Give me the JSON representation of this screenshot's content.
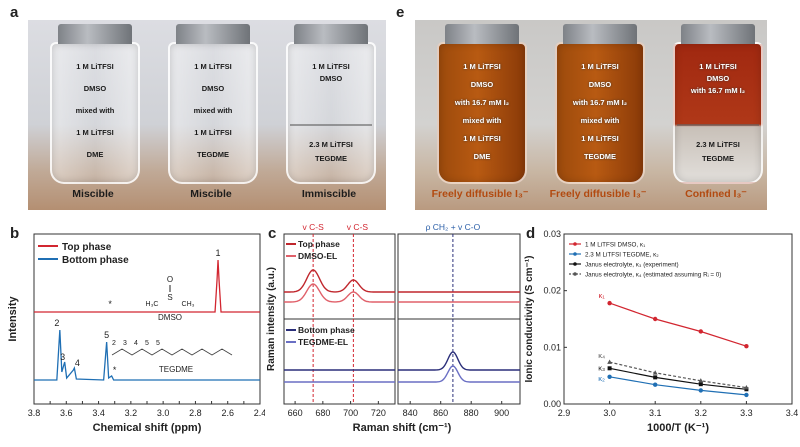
{
  "panel_a": {
    "letter": "a",
    "vials": [
      {
        "lines": [
          "1 M LiTFSI",
          "DMSO",
          "mixed with",
          "1 M LiTFSI",
          "DME"
        ],
        "caption": "Miscible"
      },
      {
        "lines": [
          "1 M LiTFSI",
          "DMSO",
          "mixed with",
          "1 M LiTFSI",
          "TEGDME"
        ],
        "caption": "Miscible"
      },
      {
        "lines": [
          "1 M LiTFSI",
          "DMSO",
          "2.3 M LiTFSI",
          "TEGDME"
        ],
        "caption": "Immiscible"
      }
    ]
  },
  "panel_e": {
    "letter": "e",
    "vials": [
      {
        "lines": [
          "1 M LiTFSI",
          "DMSO",
          "with 16.7 mM I₂",
          "mixed with",
          "1 M LiTFSI",
          "DME"
        ],
        "caption": "Freely diffusible I₃⁻",
        "color": "#b85a12"
      },
      {
        "lines": [
          "1 M LiTFSI",
          "DMSO",
          "with 16.7 mM I₂",
          "mixed with",
          "1 M LiTFSI",
          "TEGDME"
        ],
        "caption": "Freely diffusible I₃⁻",
        "color": "#b85a12"
      },
      {
        "lines": [
          "1 M LiTFSI",
          "DMSO",
          "with 16.7 mM I₂",
          "2.3 M LiTFSI",
          "TEGDME"
        ],
        "caption": "Confined I₃⁻",
        "color": "#a02810"
      }
    ]
  },
  "chart_data": [
    {
      "panel": "b",
      "type": "line",
      "xlabel": "Chemical shift (ppm)",
      "ylabel": "Intensity",
      "xlim": [
        3.8,
        2.4
      ],
      "x_ticks": [
        "3.8",
        "3.7",
        "3.6",
        "3.5",
        "3.4",
        "3.3",
        "3.2",
        "3.1",
        "3.0",
        "2.9",
        "2.8",
        "2.7",
        "2.6",
        "2.5",
        "2.4"
      ],
      "legend": [
        "Top phase",
        "Bottom phase"
      ],
      "series": [
        {
          "name": "Top phase",
          "color": "#d22630",
          "peaks": [
            {
              "x": 2.66,
              "label": "1"
            },
            {
              "x": 3.31,
              "label": "*"
            }
          ]
        },
        {
          "name": "Bottom phase",
          "color": "#1f6fb4",
          "peaks": [
            {
              "x": 3.64,
              "label": "2"
            },
            {
              "x": 3.61,
              "label": "3"
            },
            {
              "x": 3.55,
              "label": "4"
            },
            {
              "x": 3.35,
              "label": "5"
            },
            {
              "x": 3.31,
              "label": "*"
            }
          ]
        }
      ],
      "molecules": [
        "DMSO",
        "TEGDME"
      ],
      "structure_labels": {
        "dmso_s": "S",
        "dmso_o": "O",
        "dmso_c1": "H₃C",
        "dmso_c2": "CH₃",
        "tegdme_nums": [
          "2",
          "3",
          "4",
          "5",
          "5"
        ]
      }
    },
    {
      "panel": "c",
      "type": "line",
      "xlabel": "Raman shift (cm⁻¹)",
      "ylabel": "Raman intensity (a.u.)",
      "x_ticks_left": [
        "660",
        "680",
        "700",
        "720"
      ],
      "x_ticks_right": [
        "840",
        "860",
        "880",
        "900"
      ],
      "annotations": [
        "v C-S",
        "v C-S",
        "ρ CH₂ + v C-O"
      ],
      "vlines": [
        673,
        702,
        868
      ],
      "legend_top": [
        "Top phase",
        "DMSO-EL"
      ],
      "legend_bottom": [
        "Bottom phase",
        "TEGDME-EL"
      ],
      "series": [
        {
          "name": "Top phase",
          "color": "#c0272d"
        },
        {
          "name": "DMSO-EL",
          "color": "#e0606a"
        },
        {
          "name": "Bottom phase",
          "color": "#2b2f7a"
        },
        {
          "name": "TEGDME-EL",
          "color": "#6a6fc4"
        }
      ]
    },
    {
      "panel": "d",
      "type": "line",
      "xlabel": "1000/T (K⁻¹)",
      "ylabel": "Ionic conductivity (S cm⁻¹)",
      "xlim": [
        2.9,
        3.4
      ],
      "ylim": [
        0,
        0.03
      ],
      "x_ticks": [
        "2.9",
        "3.0",
        "3.1",
        "3.2",
        "3.3",
        "3.4"
      ],
      "y_ticks": [
        "0.00",
        "0.01",
        "0.02",
        "0.03"
      ],
      "x": [
        3.0,
        3.1,
        3.2,
        3.3
      ],
      "series": [
        {
          "name": "1 M LiTFSI DMSO, κ₁",
          "label": "κ₁",
          "color": "#d22630",
          "marker": "circle",
          "dash": false,
          "values": [
            0.0178,
            0.015,
            0.0128,
            0.0102
          ]
        },
        {
          "name": "2.3 M LiTFSI TEGDME, κ₂",
          "label": "κ₂",
          "color": "#1f6fb4",
          "marker": "circle",
          "dash": false,
          "values": [
            0.0048,
            0.0034,
            0.0024,
            0.0016
          ]
        },
        {
          "name": "Janus electrolyte, κ₃ (experiment)",
          "label": "κ₃",
          "color": "#111111",
          "marker": "square",
          "dash": false,
          "values": [
            0.0063,
            0.0047,
            0.0035,
            0.0026
          ]
        },
        {
          "name": "Janus electrolyte, κ₄ (estimated assuming Rᵢ = 0)",
          "label": "κ₄",
          "color": "#555555",
          "marker": "triangle",
          "dash": true,
          "values": [
            0.0074,
            0.0055,
            0.0041,
            0.0029
          ]
        }
      ]
    }
  ]
}
